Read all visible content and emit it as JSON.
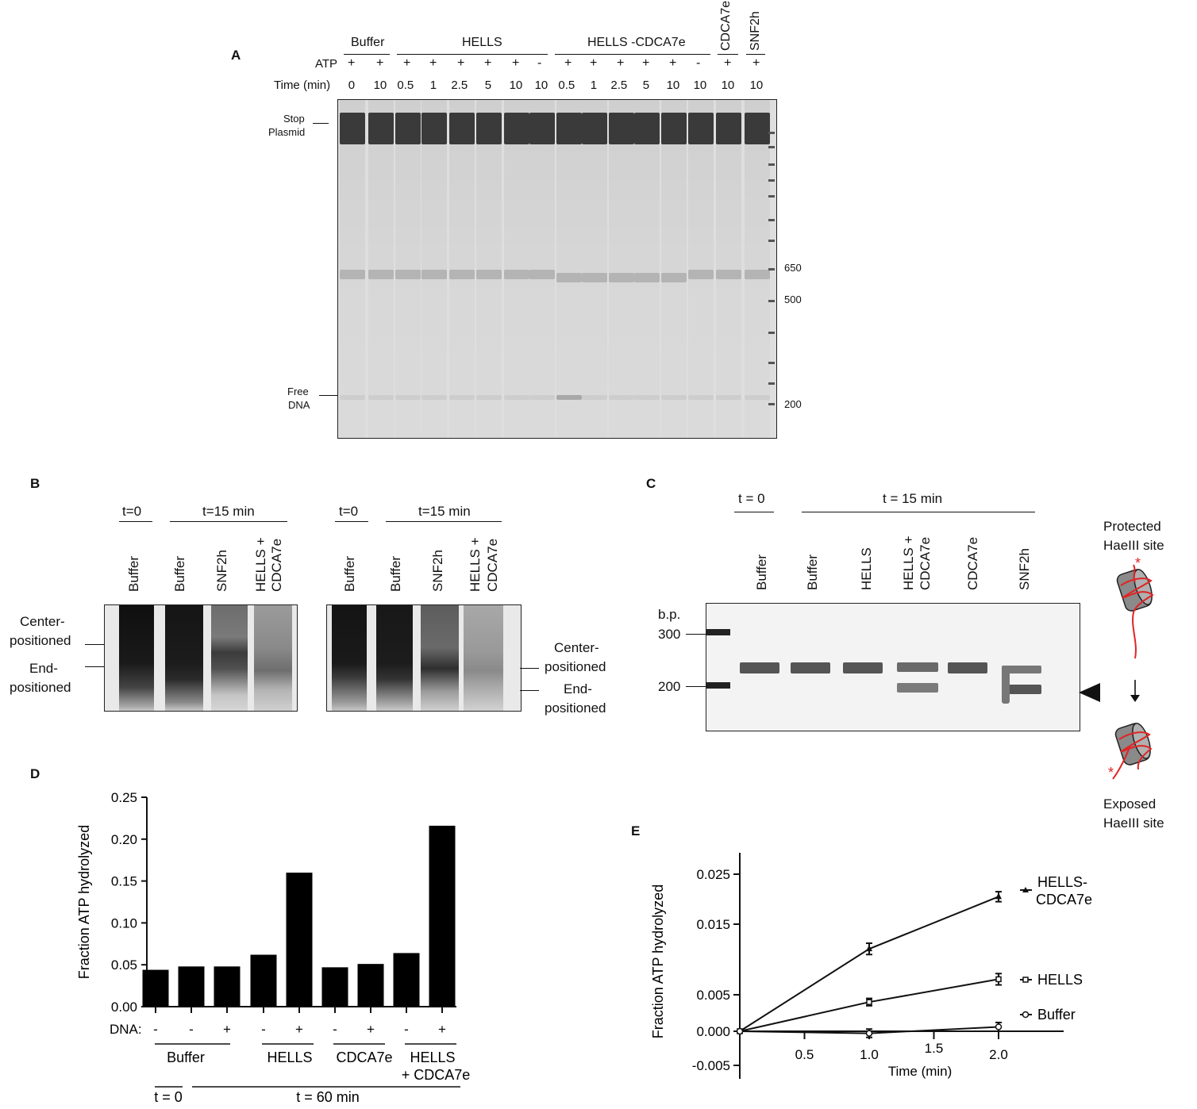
{
  "panels": {
    "a": "A",
    "b": "B",
    "c": "C",
    "d": "D",
    "e": "E"
  },
  "panel_a": {
    "groups": [
      "Buffer",
      "HELLS",
      "HELLS -CDCA7e",
      "CDCA7e",
      "SNF2h"
    ],
    "atp_label": "ATP",
    "atp": [
      "+",
      "+",
      "+",
      "+",
      "+",
      "+",
      "+",
      "-",
      "+",
      "+",
      "+",
      "+",
      "+",
      "-",
      "+",
      "+"
    ],
    "time_label": "Time (min)",
    "times": [
      "0",
      "10",
      "0.5",
      "1",
      "2.5",
      "5",
      "10",
      "10",
      "0.5",
      "1",
      "2.5",
      "5",
      "10",
      "10",
      "10",
      "10"
    ],
    "band_labels": {
      "stop_plasmid": [
        "Stop",
        "Plasmid"
      ],
      "free_dna": [
        "Free",
        "DNA"
      ]
    },
    "markers": [
      "650",
      "500",
      "200"
    ]
  },
  "panel_b": {
    "t0": "t=0",
    "t15": "t=15 min",
    "lanes": [
      "Buffer",
      "Buffer",
      "SNF2h",
      "HELLS +",
      "CDCA7e"
    ],
    "center": [
      "Center-",
      "positioned"
    ],
    "end": [
      "End-",
      "positioned"
    ]
  },
  "panel_c": {
    "t0": "t = 0",
    "t15": "t = 15 min",
    "lanes": [
      "Buffer",
      "Buffer",
      "HELLS",
      "HELLS +",
      "CDCA7e",
      "CDCA7e",
      "SNF2h"
    ],
    "bp": "b.p.",
    "markers": [
      "300",
      "200"
    ],
    "protected": [
      "Protected",
      "HaeIII site"
    ],
    "exposed": [
      "Exposed",
      "HaeIII site"
    ]
  },
  "chart_data": [
    {
      "type": "bar",
      "title": "",
      "ylabel": "Fraction ATP hydrolyzed",
      "ylim": [
        0,
        0.25
      ],
      "yticks": [
        "0.00",
        "0.05",
        "0.10",
        "0.15",
        "0.20",
        "0.25"
      ],
      "dna_label": "DNA:",
      "dna": [
        "-",
        "-",
        "+",
        "-",
        "+",
        "-",
        "+",
        "-",
        "+"
      ],
      "values": [
        0.044,
        0.048,
        0.048,
        0.062,
        0.16,
        0.047,
        0.051,
        0.064,
        0.216
      ],
      "groups": [
        "Buffer",
        "HELLS",
        "CDCA7e",
        "HELLS",
        "+ CDCA7e"
      ],
      "t0": "t = 0",
      "t60": "t = 60 min"
    },
    {
      "type": "line",
      "xlabel": "Time (min)",
      "ylabel": "Fraction ATP hydrolyzed",
      "xticks": [
        "0.5",
        "1.0",
        "1.5",
        "2.0"
      ],
      "yticks": [
        "0.025",
        "0.015",
        "0.005",
        "0.000",
        "-0.005"
      ],
      "series": [
        {
          "name": "HELLS-CDCA7e",
          "label": [
            "HELLS-",
            "CDCA7e"
          ],
          "x": [
            0,
            1.0,
            2.0
          ],
          "y": [
            0,
            0.0115,
            0.0205
          ],
          "err": [
            0,
            0.0008,
            0.001
          ]
        },
        {
          "name": "HELLS",
          "label": [
            "HELLS"
          ],
          "x": [
            0,
            1.0,
            2.0
          ],
          "y": [
            0,
            0.004,
            0.0072
          ],
          "err": [
            0,
            0.0005,
            0.0008
          ]
        },
        {
          "name": "Buffer",
          "label": [
            "Buffer"
          ],
          "x": [
            0,
            1.0,
            2.0
          ],
          "y": [
            0,
            -0.0003,
            0.0006
          ],
          "err": [
            0,
            0.0006,
            0.0006
          ]
        }
      ]
    }
  ]
}
